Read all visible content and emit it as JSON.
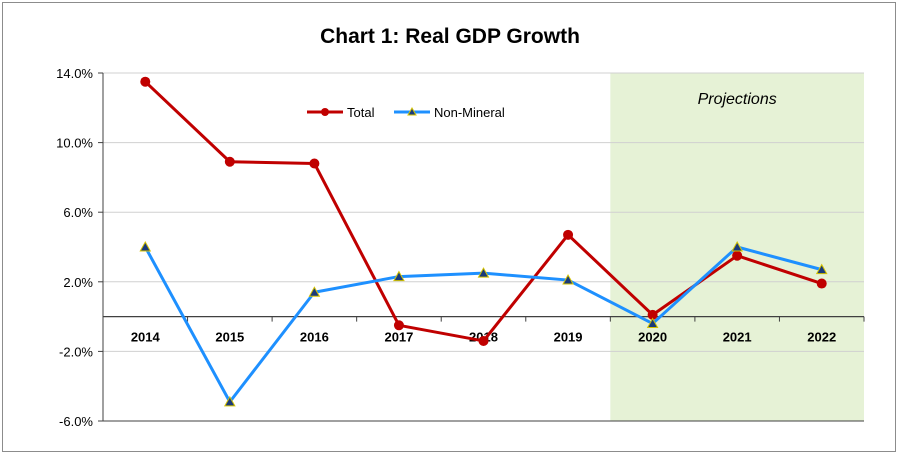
{
  "chart_data": {
    "type": "line",
    "title": "Chart 1: Real GDP Growth",
    "categories": [
      "2014",
      "2015",
      "2016",
      "2017",
      "2018",
      "2019",
      "2020",
      "2021",
      "2022"
    ],
    "series": [
      {
        "name": "Total",
        "color": "#c00000",
        "marker": "circle",
        "values": [
          13.5,
          8.9,
          8.8,
          -0.5,
          -1.4,
          4.7,
          0.1,
          3.5,
          1.9
        ]
      },
      {
        "name": "Non-Mineral",
        "color": "#1e90ff",
        "marker": "triangle",
        "values": [
          4.0,
          -4.9,
          1.4,
          2.3,
          2.5,
          2.1,
          -0.4,
          4.0,
          2.7
        ]
      }
    ],
    "ylim": [
      -6,
      14
    ],
    "yticks": [
      -6,
      -2,
      2,
      6,
      10,
      14
    ],
    "ytick_labels": [
      "-6.0%",
      "-2.0%",
      "2.0%",
      "6.0%",
      "10.0%",
      "14.0%"
    ],
    "grid": true,
    "legend": "top-center",
    "projection": {
      "label": "Projections",
      "from": "2020",
      "to": "2022",
      "color": "#e6f2d6"
    },
    "xlabel": "",
    "ylabel": ""
  }
}
